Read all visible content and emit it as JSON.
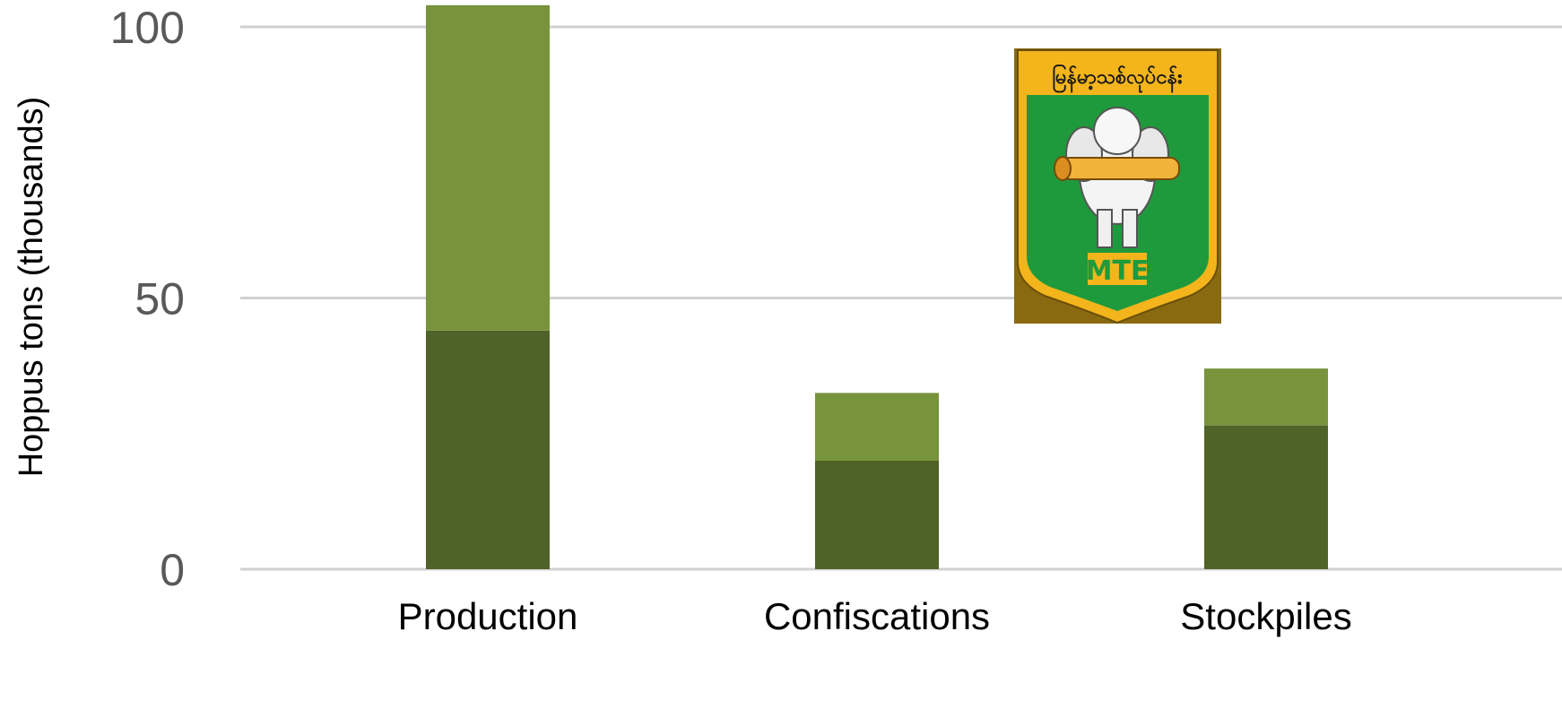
{
  "chart_data": {
    "type": "bar",
    "stacked": true,
    "categories": [
      "Production",
      "Confiscations",
      "Stockpiles"
    ],
    "series": [
      {
        "color": "#4f6228",
        "values": [
          44,
          20,
          26.5
        ]
      },
      {
        "color": "#77933c",
        "values": [
          60,
          12.5,
          10.5
        ]
      }
    ],
    "title": "",
    "xlabel": "",
    "ylabel": "Hoppus tons (thousands)",
    "yticks": [
      0,
      50,
      100
    ],
    "ylim": [
      0,
      104
    ],
    "grid": true,
    "legend": "none"
  },
  "logo": {
    "name": "Myanma Timber Enterprise seal",
    "script_text": "မြန်မာ့သစ်လုပ်ငန်း",
    "initials": "MTE",
    "colors": {
      "green": "#1e9a3c",
      "gold": "#f3b51b",
      "outline": "#8a6a10"
    }
  }
}
